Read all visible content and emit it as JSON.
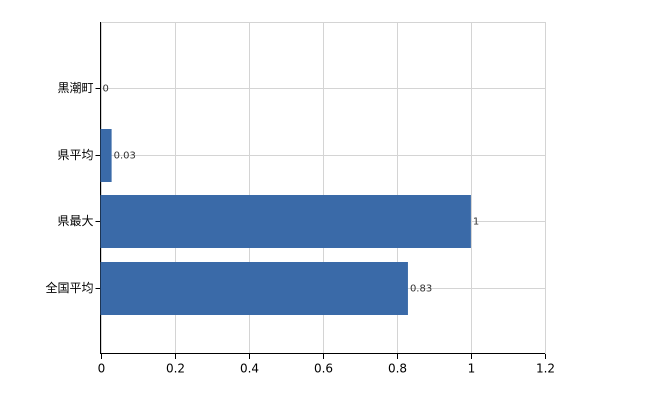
{
  "chart_data": {
    "type": "hbar",
    "categories": [
      "黒潮町",
      "県平均",
      "県最大",
      "全国平均"
    ],
    "values": [
      0,
      0.03,
      1,
      0.83
    ],
    "color": "#3a6aa8",
    "xlim": [
      0,
      1.2
    ],
    "xticks": [
      0,
      0.2,
      0.4,
      0.6,
      0.8,
      1,
      1.2
    ],
    "grid": true
  }
}
